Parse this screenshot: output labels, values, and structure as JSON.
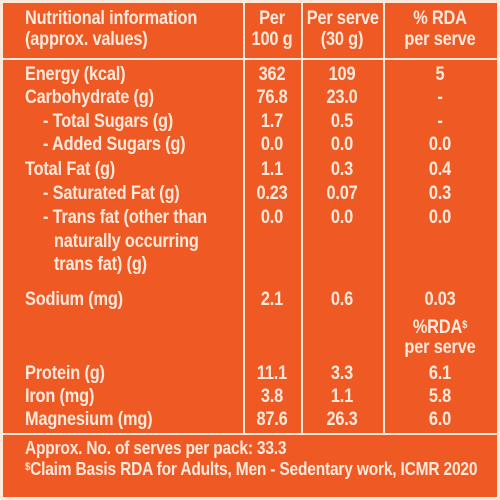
{
  "header": {
    "col1_line1": "Nutritional information",
    "col1_line2": "(approx. values)",
    "col2_line1": "Per",
    "col2_line2": "100 g",
    "col3_line1": "Per serve",
    "col3_line2": "(30 g)",
    "col4_line1": "% RDA",
    "col4_line2": "per serve"
  },
  "rows": [
    {
      "label": "Energy (kcal)",
      "per100": "362",
      "perServe": "109",
      "rda": "5"
    },
    {
      "label": "Carbohydrate (g)",
      "per100": "76.8",
      "perServe": "23.0",
      "rda": "-"
    },
    {
      "label": "- Total Sugars (g)",
      "per100": "1.7",
      "perServe": "0.5",
      "rda": "-"
    },
    {
      "label": "- Added Sugars (g)",
      "per100": "0.0",
      "perServe": "0.0",
      "rda": "0.0"
    },
    {
      "label": "Total Fat (g)",
      "per100": "1.1",
      "perServe": "0.3",
      "rda": "0.4"
    },
    {
      "label": "- Saturated Fat (g)",
      "per100": "0.23",
      "perServe": "0.07",
      "rda": "0.3"
    },
    {
      "label": "- Trans fat (other than",
      "per100": "0.0",
      "perServe": "0.0",
      "rda": "0.0"
    },
    {
      "label": "naturally occurring",
      "per100": "",
      "perServe": "",
      "rda": ""
    },
    {
      "label": "trans fat) (g)",
      "per100": "",
      "perServe": "",
      "rda": ""
    },
    {
      "label": "Sodium (mg)",
      "per100": "2.1",
      "perServe": "0.6",
      "rda": "0.03"
    }
  ],
  "rda_subheader": {
    "line1": "%RDA",
    "sup": "$",
    "line2": "per serve"
  },
  "rows2": [
    {
      "label": "Protein (g)",
      "per100": "11.1",
      "perServe": "3.3",
      "rda": "6.1"
    },
    {
      "label": "Iron (mg)",
      "per100": "3.8",
      "perServe": "1.1",
      "rda": "5.8"
    },
    {
      "label": "Magnesium (mg)",
      "per100": "87.6",
      "perServe": "26.3",
      "rda": "6.0"
    }
  ],
  "footer": {
    "serves": "Approx. No. of serves per pack: 33.3",
    "claim_sup": "$",
    "claim": "Claim Basis RDA for Adults, Men - Sedentary work, ICMR 2020"
  },
  "colors": {
    "background": "#ef5a24",
    "text": "#fbe9dc"
  }
}
